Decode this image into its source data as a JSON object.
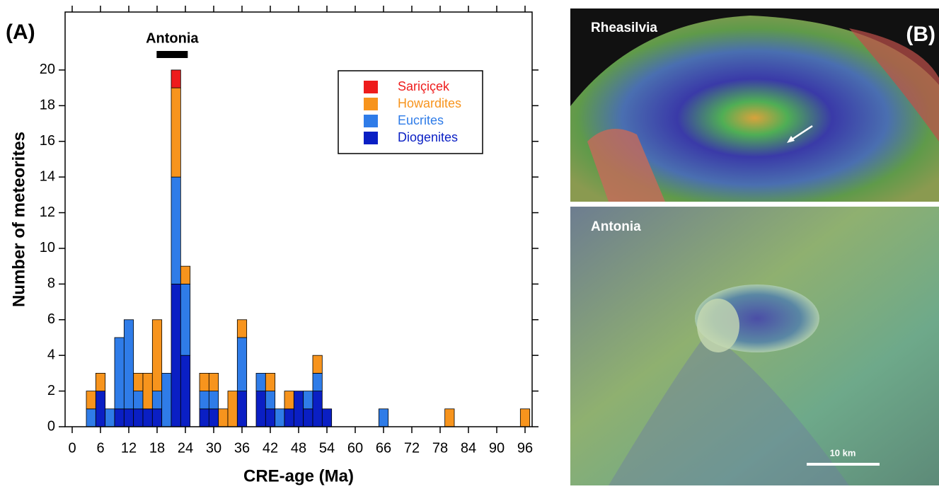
{
  "chart_data": {
    "type": "stacked_histogram",
    "xlabel": "CRE-age (Ma)",
    "ylabel": "Number of meteorites",
    "bins": [
      3,
      5,
      7,
      9,
      11,
      13,
      15,
      17,
      19,
      21,
      23,
      25,
      27,
      29,
      31,
      33,
      35,
      37,
      39,
      41,
      43,
      45,
      47,
      49,
      51,
      53,
      55,
      57,
      59,
      61,
      63,
      65,
      67,
      69,
      71,
      73,
      75,
      77,
      79,
      81,
      83,
      85,
      87,
      89,
      91,
      93,
      95,
      97
    ],
    "series": [
      {
        "name": "Sariçiçek",
        "color": "#ee1c1c",
        "values": [
          0,
          0,
          0,
          0,
          0,
          0,
          0,
          0,
          0,
          1,
          0,
          0,
          0,
          0,
          0,
          0,
          0,
          0,
          0,
          0,
          0,
          0,
          0,
          0,
          0,
          0,
          0,
          0,
          0,
          0,
          0,
          0,
          0,
          0,
          0,
          0,
          0,
          0,
          0,
          0,
          0,
          0,
          0,
          0,
          0,
          0,
          0
        ]
      },
      {
        "name": "Howardites",
        "color": "#f7941d",
        "values": [
          1,
          1,
          0,
          0,
          0,
          1,
          2,
          4,
          0,
          5,
          1,
          0,
          1,
          1,
          1,
          2,
          1,
          0,
          0,
          1,
          0,
          1,
          0,
          0,
          1,
          0,
          0,
          0,
          0,
          0,
          0,
          0,
          0,
          0,
          0,
          0,
          0,
          0,
          1,
          0,
          0,
          0,
          0,
          0,
          0,
          0,
          1
        ]
      },
      {
        "name": "Eucrites",
        "color": "#2f7ce8",
        "values": [
          1,
          0,
          1,
          4,
          5,
          1,
          0,
          1,
          3,
          6,
          4,
          0,
          1,
          1,
          0,
          0,
          3,
          0,
          1,
          1,
          1,
          0,
          0,
          1,
          1,
          0,
          0,
          0,
          0,
          0,
          0,
          1,
          0,
          0,
          0,
          0,
          0,
          0,
          0,
          0,
          0,
          0,
          0,
          0,
          0,
          0,
          0
        ]
      },
      {
        "name": "Diogenites",
        "color": "#0a1fc4",
        "values": [
          0,
          2,
          0,
          1,
          1,
          1,
          1,
          1,
          0,
          8,
          4,
          0,
          1,
          1,
          0,
          0,
          2,
          0,
          2,
          1,
          0,
          1,
          2,
          1,
          2,
          1,
          0,
          0,
          0,
          0,
          0,
          0,
          0,
          0,
          0,
          0,
          0,
          0,
          0,
          0,
          0,
          0,
          0,
          0,
          0,
          0,
          0
        ]
      }
    ],
    "xlim": [
      -1.5,
      97.5
    ],
    "ylim": [
      0,
      23.25
    ],
    "xticks": [
      0,
      6,
      12,
      18,
      24,
      30,
      36,
      42,
      48,
      54,
      60,
      66,
      72,
      78,
      84,
      90,
      96
    ],
    "yticks": [
      0,
      2,
      4,
      6,
      8,
      10,
      12,
      14,
      16,
      18,
      20
    ],
    "legend": "upper right",
    "annotations": [
      {
        "text": "Antonia",
        "range": [
          17.9,
          24.5
        ]
      }
    ]
  },
  "figure": {
    "panel_a_label": "(A)",
    "panel_b_label": "(B)",
    "images": [
      {
        "label": "Rheasilvia"
      },
      {
        "label": "Antonia",
        "scale_bar": "10 km"
      }
    ]
  }
}
